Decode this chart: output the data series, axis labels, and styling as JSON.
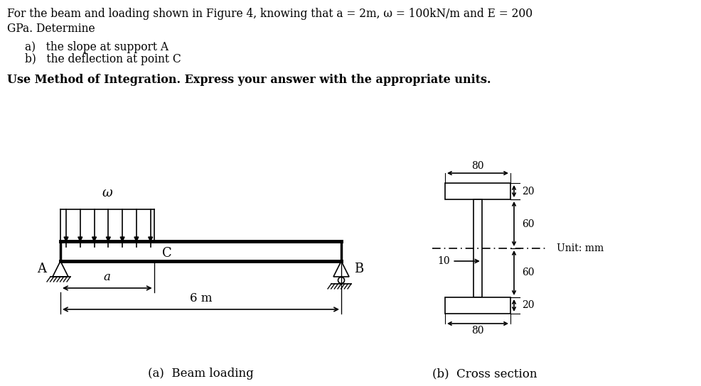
{
  "title_line1": "For the beam and loading shown in Figure 4, knowing that a = 2m, ω = 100kN/m and E = 200",
  "title_line2": "GPa. Determine",
  "item_a": "a)   the slope at support A",
  "item_b": "b)   the deflection at point C",
  "bold_line": "Use Method of Integration. Express your answer with the appropriate units.",
  "caption_a": "(a)  Beam loading",
  "caption_b": "(b)  Cross section",
  "unit_label": "Unit: mm",
  "dim_80_top": "80",
  "dim_20_top": "20",
  "dim_60_top": "60",
  "dim_10_web": "10",
  "dim_60_bot": "60",
  "dim_20_bot": "20",
  "dim_80_bot": "80",
  "label_A": "A",
  "label_B": "B",
  "label_C": "C",
  "label_a": "a",
  "label_omega": "ω",
  "label_6m": "6 m",
  "bg_color": "#ffffff",
  "line_color": "#000000"
}
